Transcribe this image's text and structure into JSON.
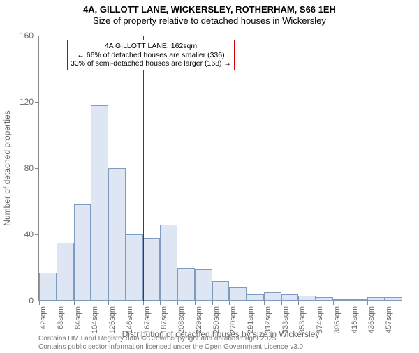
{
  "titles": {
    "main": "4A, GILLOTT LANE, WICKERSLEY, ROTHERHAM, S66 1EH",
    "sub": "Size of property relative to detached houses in Wickersley"
  },
  "chart": {
    "type": "histogram",
    "background_color": "#ffffff",
    "bar_fill": "#dde6f2",
    "bar_stroke": "#7f9bbf",
    "axis_color": "#888888",
    "label_color": "#666666",
    "y_axis": {
      "label": "Number of detached properties",
      "ticks": [
        0,
        40,
        80,
        120,
        160
      ],
      "max": 160
    },
    "x_axis": {
      "label": "Distribution of detached houses by size in Wickersley",
      "ticks": [
        "42sqm",
        "63sqm",
        "84sqm",
        "104sqm",
        "125sqm",
        "146sqm",
        "167sqm",
        "187sqm",
        "208sqm",
        "229sqm",
        "250sqm",
        "270sqm",
        "291sqm",
        "312sqm",
        "333sqm",
        "353sqm",
        "374sqm",
        "395sqm",
        "416sqm",
        "436sqm",
        "457sqm"
      ]
    },
    "bars": [
      17,
      35,
      58,
      118,
      80,
      40,
      38,
      46,
      20,
      19,
      12,
      8,
      4,
      5,
      4,
      3,
      2,
      0,
      1,
      2,
      2
    ],
    "marker": {
      "position_index": 6,
      "color": "#cc0000"
    },
    "annotation": {
      "line1": "4A GILLOTT LANE: 162sqm",
      "line2": "← 66% of detached houses are smaller (336)",
      "line3": "33% of semi-detached houses are larger (168) →",
      "border_color": "#cc0000"
    }
  },
  "footer": {
    "line1": "Contains HM Land Registry data © Crown copyright and database right 2025.",
    "line2": "Contains public sector information licensed under the Open Government Licence v3.0."
  }
}
